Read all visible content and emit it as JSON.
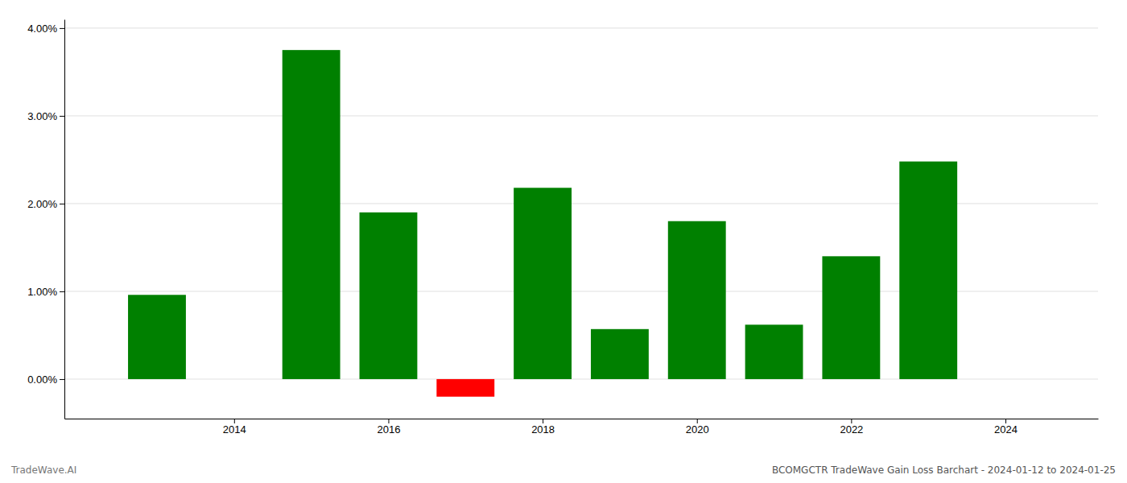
{
  "chart_data": {
    "type": "bar",
    "title": "BCOMGCTR TradeWave Gain Loss Barchart - 2024-01-12 to 2024-01-25",
    "annotations": [
      "TradeWave.AI"
    ],
    "x": [
      2013,
      2015,
      2016,
      2017,
      2018,
      2019,
      2020,
      2021,
      2022,
      2023
    ],
    "values": [
      0.0096,
      0.0375,
      0.019,
      -0.002,
      0.0218,
      0.0057,
      0.018,
      0.0062,
      0.014,
      0.0248
    ],
    "colors": [
      "#008000",
      "#008000",
      "#008000",
      "#ff0000",
      "#008000",
      "#008000",
      "#008000",
      "#008000",
      "#008000",
      "#008000"
    ],
    "xlim": [
      2011.8,
      2025.2
    ],
    "xticks": [
      2014,
      2016,
      2018,
      2020,
      2022,
      2024
    ],
    "ylim": [
      -0.0045,
      0.041
    ],
    "yticks": [
      {
        "value": 0,
        "label": "0.00%"
      },
      {
        "value": 0.01,
        "label": "1.00%"
      },
      {
        "value": 0.02,
        "label": "2.00%"
      },
      {
        "value": 0.03,
        "label": "3.00%"
      },
      {
        "value": 0.04,
        "label": "4.00%"
      }
    ],
    "grid": true
  }
}
